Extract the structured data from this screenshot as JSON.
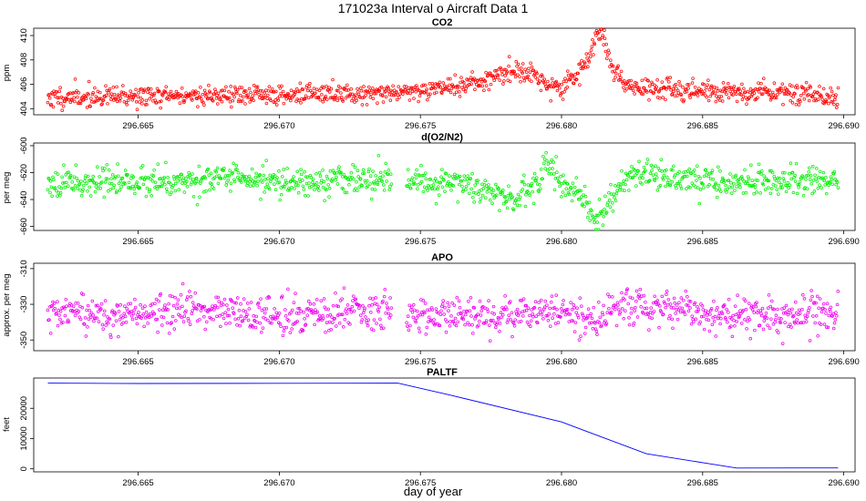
{
  "figure": {
    "title": "171023a   Interval o Aircraft Data 1",
    "xlabel": "day of year"
  },
  "colors": {
    "co2": "#ff0000",
    "o2n2": "#00ee00",
    "apo": "#ee00ee",
    "paltf": "#0000ff",
    "frame": "#000000"
  },
  "chart_data": [
    {
      "id": "co2",
      "type": "scatter",
      "title": "CO2",
      "ylabel": "ppm",
      "xlim": [
        296.6613,
        296.6904
      ],
      "ylim": [
        403.5,
        410.6
      ],
      "xticks": [
        296.665,
        296.67,
        296.675,
        296.68,
        296.685,
        296.69
      ],
      "xtick_labels": [
        "296.665",
        "296.670",
        "296.675",
        "296.680",
        "296.685",
        "296.690"
      ],
      "yticks": [
        404,
        406,
        408,
        410
      ],
      "ytick_labels": [
        "404",
        "406",
        "408",
        "410"
      ],
      "xrange": [
        296.6618,
        296.6898
      ],
      "gap": null,
      "profile": [
        [
          296.6618,
          404.9
        ],
        [
          296.665,
          405.0
        ],
        [
          296.668,
          405.1
        ],
        [
          296.672,
          405.2
        ],
        [
          296.6745,
          405.4
        ],
        [
          296.676,
          405.8
        ],
        [
          296.677,
          406.1
        ],
        [
          296.6776,
          406.6
        ],
        [
          296.6785,
          407.2
        ],
        [
          296.679,
          406.8
        ],
        [
          296.6795,
          405.9
        ],
        [
          296.68,
          405.6
        ],
        [
          296.6805,
          406.8
        ],
        [
          296.681,
          408.0
        ],
        [
          296.6812,
          410.0
        ],
        [
          296.6815,
          409.8
        ],
        [
          296.6818,
          407.5
        ],
        [
          296.6822,
          405.9
        ],
        [
          296.6835,
          405.6
        ],
        [
          296.686,
          405.4
        ],
        [
          296.688,
          405.4
        ],
        [
          296.6898,
          405.1
        ]
      ],
      "noise_sd": 0.42,
      "n_points": 1150,
      "seed": 11
    },
    {
      "id": "o2n2",
      "type": "scatter",
      "title": "d(O2/N2)",
      "ylabel": "per meg",
      "xlim": [
        296.6613,
        296.6904
      ],
      "ylim": [
        -663,
        -598
      ],
      "xticks": [
        296.665,
        296.67,
        296.675,
        296.68,
        296.685,
        296.69
      ],
      "xtick_labels": [
        "296.665",
        "296.670",
        "296.675",
        "296.680",
        "296.685",
        "296.690"
      ],
      "yticks": [
        -660,
        -640,
        -620,
        -600
      ],
      "ytick_labels": [
        "-660",
        "-640",
        "-620",
        "-600"
      ],
      "xrange": [
        296.6618,
        296.6898
      ],
      "gap": [
        296.674,
        296.6745
      ],
      "profile": [
        [
          296.6618,
          -626
        ],
        [
          296.665,
          -627
        ],
        [
          296.667,
          -625
        ],
        [
          296.67,
          -626
        ],
        [
          296.674,
          -625
        ],
        [
          296.6745,
          -627
        ],
        [
          296.6765,
          -628
        ],
        [
          296.6775,
          -634
        ],
        [
          296.6783,
          -640
        ],
        [
          296.679,
          -628
        ],
        [
          296.6795,
          -612
        ],
        [
          296.68,
          -628
        ],
        [
          296.6808,
          -640
        ],
        [
          296.6812,
          -657
        ],
        [
          296.6815,
          -650
        ],
        [
          296.682,
          -630
        ],
        [
          296.6825,
          -620
        ],
        [
          296.6835,
          -622
        ],
        [
          296.686,
          -628
        ],
        [
          296.688,
          -626
        ],
        [
          296.6898,
          -627
        ]
      ],
      "noise_sd": 5.2,
      "n_points": 1100,
      "seed": 23
    },
    {
      "id": "apo",
      "type": "scatter",
      "title": "APO",
      "ylabel": "approx. per meg",
      "xlim": [
        296.6613,
        296.6904
      ],
      "ylim": [
        -356,
        -307
      ],
      "xticks": [
        296.665,
        296.67,
        296.675,
        296.68,
        296.685,
        296.69
      ],
      "xtick_labels": [
        "296.665",
        "296.670",
        "296.675",
        "296.680",
        "296.685",
        "296.690"
      ],
      "yticks": [
        -350,
        -330,
        -310
      ],
      "ytick_labels": [
        "-350",
        "-330",
        "-310"
      ],
      "xrange": [
        296.6618,
        296.6898
      ],
      "gap": [
        296.674,
        296.6745
      ],
      "profile": [
        [
          296.6618,
          -336
        ],
        [
          296.665,
          -336
        ],
        [
          296.667,
          -333
        ],
        [
          296.67,
          -337
        ],
        [
          296.674,
          -333
        ],
        [
          296.6745,
          -335
        ],
        [
          296.678,
          -336
        ],
        [
          296.68,
          -333
        ],
        [
          296.681,
          -340
        ],
        [
          296.682,
          -332
        ],
        [
          296.684,
          -331
        ],
        [
          296.686,
          -337
        ],
        [
          296.688,
          -337
        ],
        [
          296.6898,
          -336
        ]
      ],
      "noise_sd": 5.0,
      "n_points": 1100,
      "seed": 37
    },
    {
      "id": "paltf",
      "type": "line",
      "title": "PALTF",
      "ylabel": "feet",
      "xlim": [
        296.6613,
        296.6904
      ],
      "ylim": [
        -1000,
        30000
      ],
      "xticks": [
        296.665,
        296.67,
        296.675,
        296.68,
        296.685,
        296.69
      ],
      "xtick_labels": [
        "296.665",
        "296.670",
        "296.675",
        "296.680",
        "296.685",
        "296.690"
      ],
      "yticks": [
        0,
        10000,
        20000
      ],
      "ytick_labels": [
        "0",
        "10000",
        "20000"
      ],
      "x": [
        296.6618,
        296.665,
        296.67,
        296.6742,
        296.676,
        296.68,
        296.683,
        296.6862,
        296.6898
      ],
      "y": [
        28300,
        28200,
        28250,
        28300,
        24500,
        15500,
        5000,
        250,
        300
      ]
    }
  ]
}
